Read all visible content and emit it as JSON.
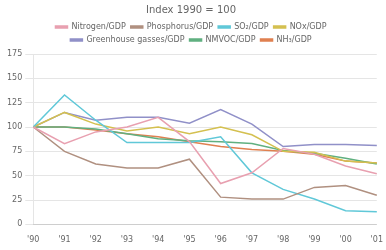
{
  "chart_data": {
    "type": "line",
    "title": "Index 1990 = 100",
    "categories": [
      "'90",
      "'91",
      "'92",
      "'93",
      "'94",
      "'95",
      "'96",
      "'97",
      "'98",
      "'99",
      "'00",
      "'01"
    ],
    "series": [
      {
        "name": "Nitrogen/GDP",
        "color": "#e8a0b0",
        "values": [
          100,
          83,
          95,
          100,
          110,
          85,
          42,
          53,
          78,
          72,
          60,
          52
        ]
      },
      {
        "name": "Phosphorus/GDP",
        "color": "#b09080",
        "values": [
          100,
          75,
          62,
          58,
          58,
          67,
          28,
          26,
          26,
          38,
          40,
          30
        ]
      },
      {
        "name": "SO₂/GDP",
        "color": "#60c8d8",
        "values": [
          100,
          133,
          107,
          84,
          84,
          84,
          90,
          53,
          36,
          26,
          14,
          13
        ]
      },
      {
        "name": "NOx/GDP",
        "color": "#d4c050",
        "values": [
          100,
          115,
          103,
          96,
          100,
          93,
          100,
          92,
          75,
          74,
          65,
          63
        ]
      },
      {
        "name": "Greenhouse gasses/GDP",
        "color": "#9090c8",
        "values": [
          100,
          115,
          107,
          110,
          110,
          104,
          118,
          103,
          80,
          82,
          82,
          81
        ]
      },
      {
        "name": "NMVOC/GDP",
        "color": "#60b080",
        "values": [
          100,
          100,
          98,
          93,
          88,
          86,
          85,
          83,
          76,
          73,
          68,
          62
        ]
      },
      {
        "name": "NH₃/GDP",
        "color": "#e08050",
        "values": [
          100,
          100,
          97,
          93,
          90,
          85,
          80,
          77,
          75,
          72,
          65,
          63
        ]
      }
    ],
    "ylim": [
      0,
      175
    ],
    "yticks": [
      0,
      25,
      50,
      75,
      100,
      125,
      150,
      175
    ],
    "grid": true,
    "legend": "top"
  }
}
